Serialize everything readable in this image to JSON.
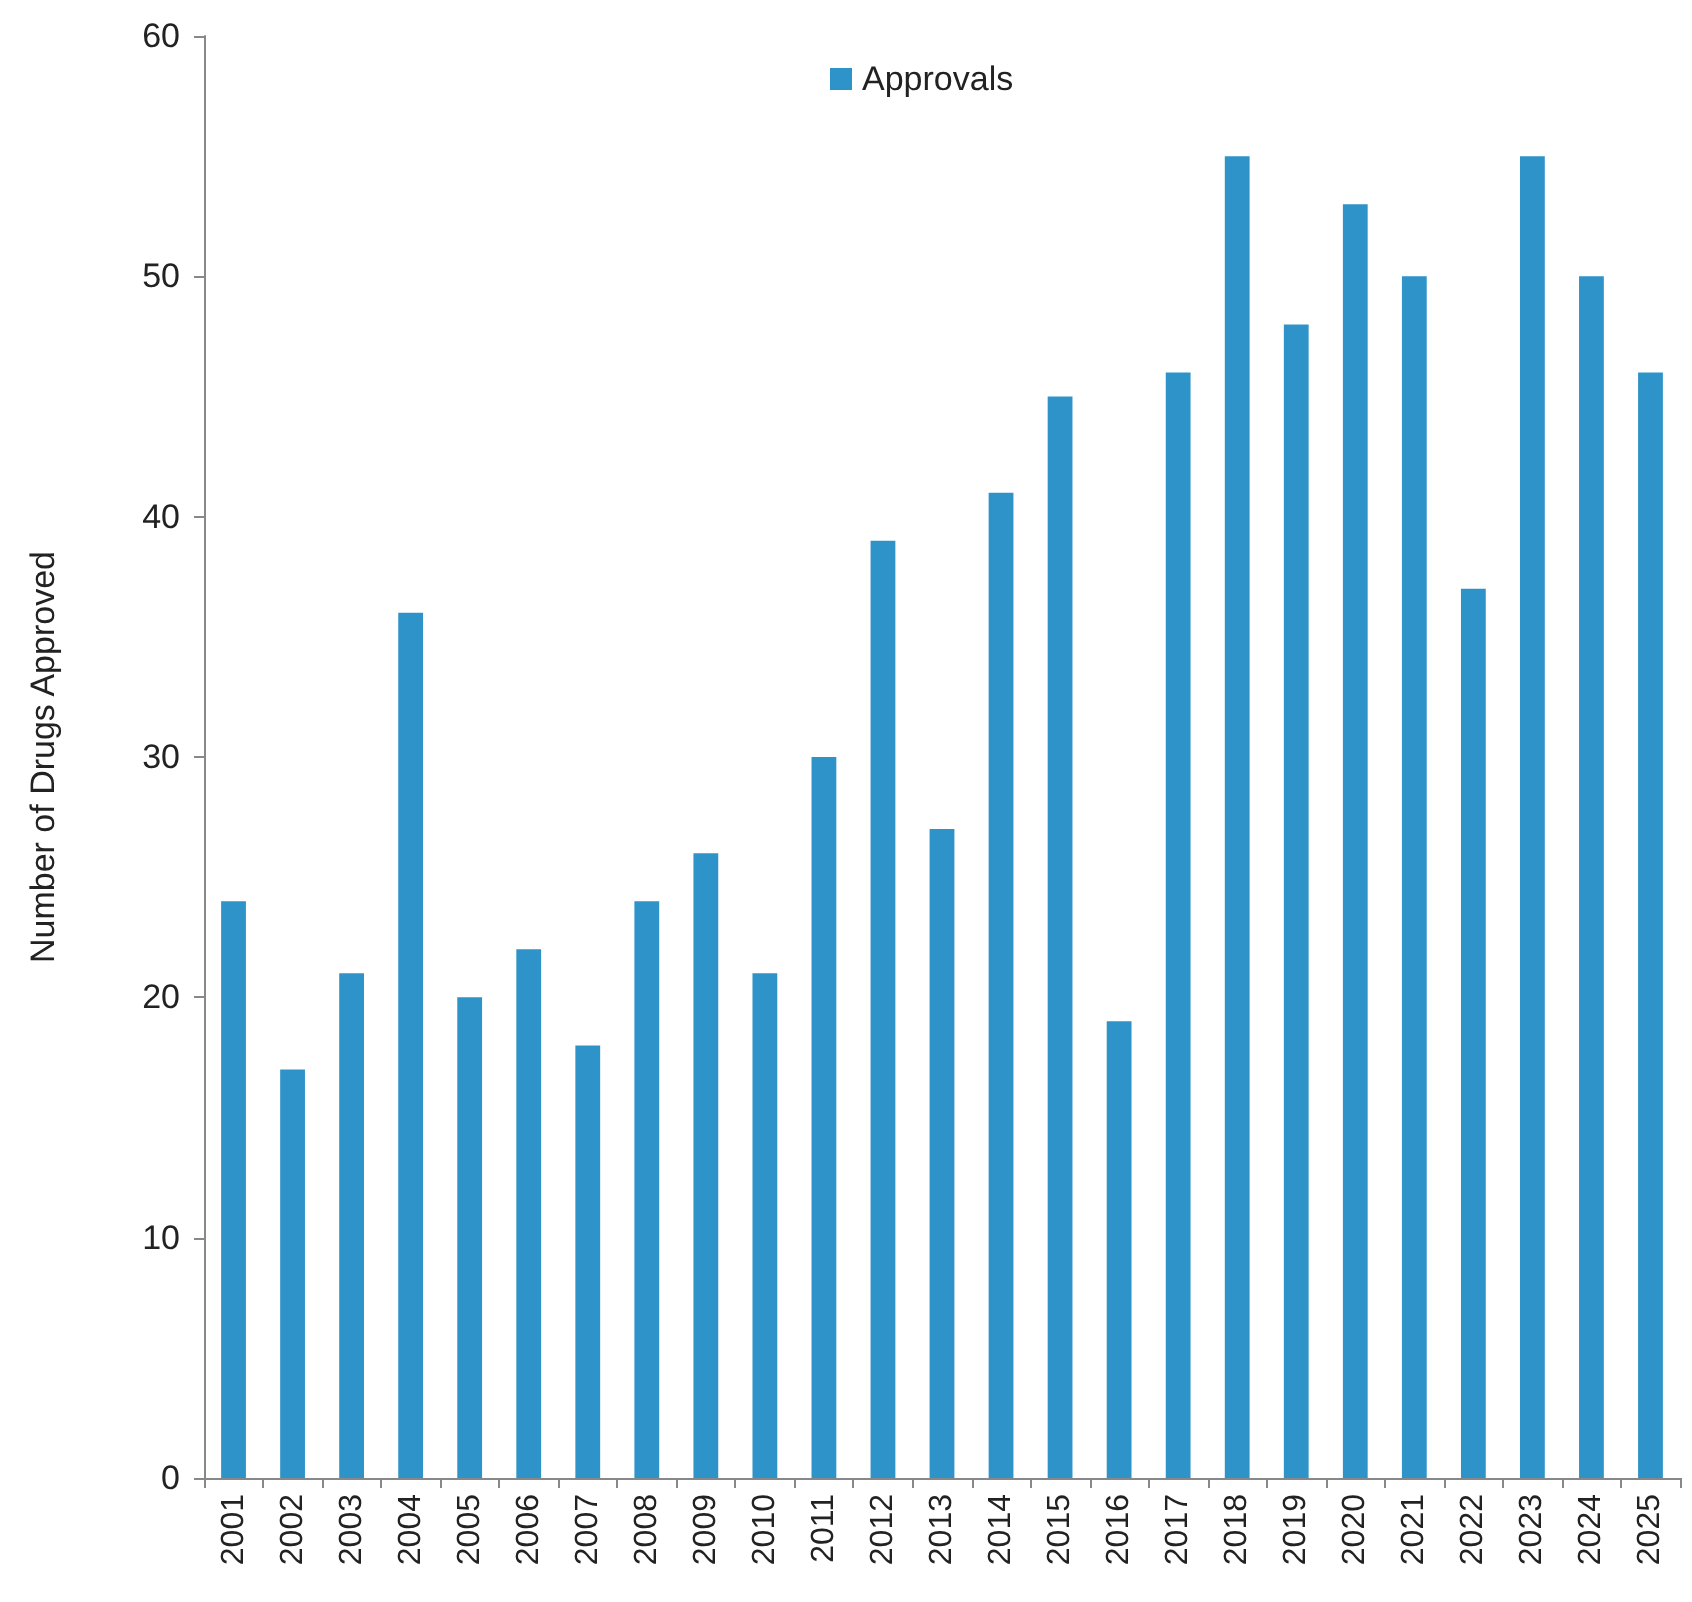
{
  "chart_data": {
    "type": "bar",
    "ylabel": "Number of Drugs Approved",
    "categories": [
      "2001",
      "2002",
      "2003",
      "2004",
      "2005",
      "2006",
      "2007",
      "2008",
      "2009",
      "2010",
      "2011",
      "2012",
      "2013",
      "2014",
      "2015",
      "2016",
      "2017",
      "2018",
      "2019",
      "2020",
      "2021",
      "2022",
      "2023",
      "2024",
      "2025"
    ],
    "series": [
      {
        "name": "Approvals",
        "color": "#2e93c8",
        "values": [
          24,
          17,
          21,
          36,
          20,
          22,
          18,
          24,
          26,
          21,
          30,
          39,
          27,
          41,
          45,
          19,
          46,
          55,
          48,
          53,
          50,
          37,
          55,
          50,
          46
        ]
      }
    ],
    "ylim": [
      0,
      60
    ],
    "yticks": [
      0,
      10,
      20,
      30,
      40,
      50,
      60
    ],
    "grid": false,
    "legend": "top"
  }
}
